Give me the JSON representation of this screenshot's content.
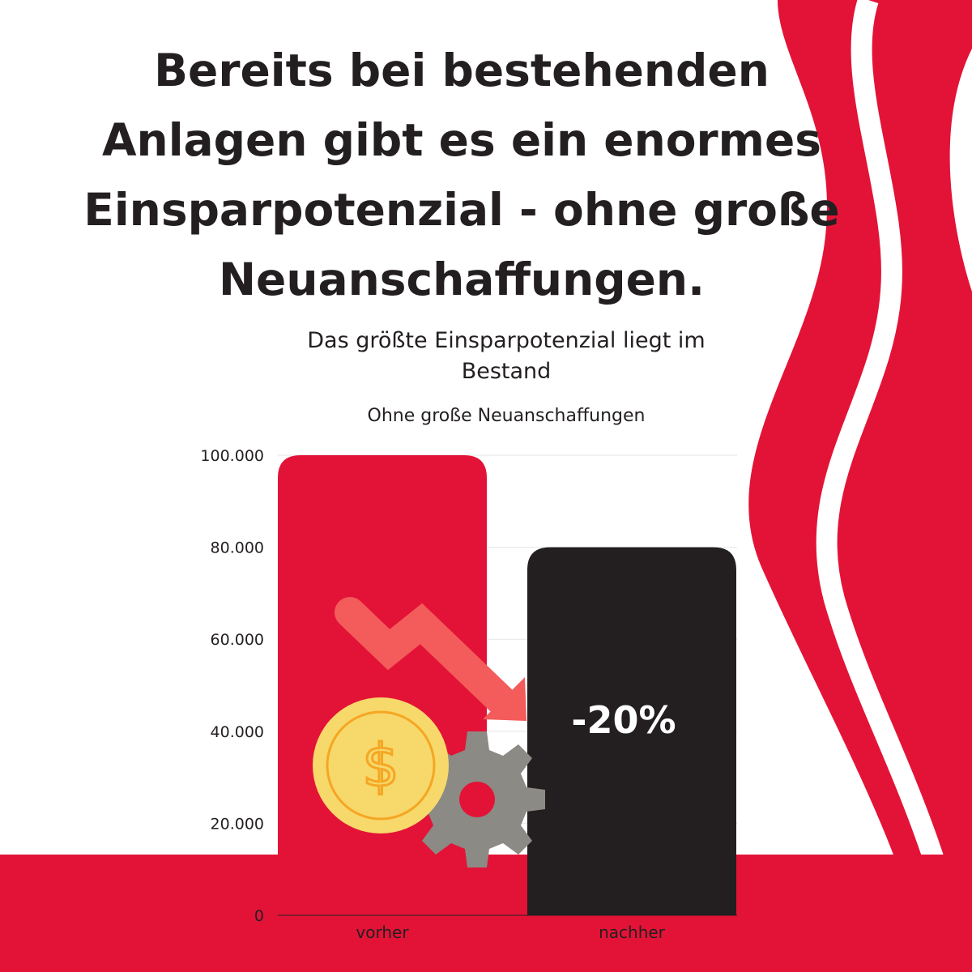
{
  "headline": "Bereits bei bestehenden Anlagen gibt es ein enormes Einsparpotenzial - ohne große Neuanschaffungen.",
  "colors": {
    "accent_red": "#e31337",
    "bar_dark": "#231f20",
    "arrow": "#f45b5b",
    "coin": "#f7d86b",
    "coin_line": "#f5a623",
    "gear": "#8c8a84"
  },
  "icons": [
    "down-trend-arrow-icon",
    "dollar-coin-icon",
    "gear-icon"
  ],
  "chart_data": {
    "type": "bar",
    "title": "Das größte Einsparpotenzial liegt im Bestand",
    "subtitle": "Ohne große Neuanschaffungen",
    "categories": [
      "vorher",
      "nachher"
    ],
    "values": [
      100000,
      80000
    ],
    "tick_labels": [
      "0",
      "20.000",
      "40.000",
      "60.000",
      "80.000",
      "100.000"
    ],
    "ylim": [
      0,
      100000
    ],
    "grid": true,
    "annotation": "-20%"
  }
}
